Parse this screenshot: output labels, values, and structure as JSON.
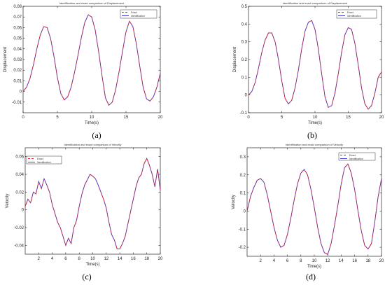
{
  "colors": {
    "exact": "#e32222",
    "identification": "#2d2dd6",
    "frame": "#000000",
    "grid": "#d9d9d9"
  },
  "chart_data": [
    {
      "id": "a",
      "panel_label": "(a)",
      "type": "line",
      "title": "Identification and exact comparison of Displacement",
      "xlabel": "Time(s)",
      "ylabel": "Displacement",
      "xlim": [
        0,
        20
      ],
      "ylim": [
        -0.02,
        0.08
      ],
      "xticks": [
        "0",
        "5",
        "10",
        "15",
        "20"
      ],
      "xtick_values": [
        0,
        5,
        10,
        15,
        20
      ],
      "yticks": [
        "-0.01",
        "0",
        "0.01",
        "0.02",
        "0.03",
        "0.04",
        "0.05",
        "0.06",
        "0.07",
        "0.08"
      ],
      "ytick_values": [
        -0.01,
        0,
        0.01,
        0.02,
        0.03,
        0.04,
        0.05,
        0.06,
        0.07,
        0.08
      ],
      "grid": false,
      "legend_position": "top-right",
      "series": [
        {
          "name": "Exact",
          "style": "dashed",
          "x": [
            0,
            0.5,
            1,
            1.5,
            2,
            2.5,
            3,
            3.5,
            4,
            4.5,
            5,
            5.5,
            6,
            6.5,
            7,
            7.5,
            8,
            8.5,
            9,
            9.5,
            10,
            10.5,
            11,
            11.5,
            12,
            12.5,
            13,
            13.5,
            14,
            14.5,
            15,
            15.5,
            16,
            16.5,
            17,
            17.5,
            18,
            18.5,
            19,
            19.5,
            20
          ],
          "y": [
            0,
            0.004,
            0.012,
            0.025,
            0.04,
            0.053,
            0.061,
            0.06,
            0.05,
            0.033,
            0.013,
            -0.002,
            -0.008,
            -0.005,
            0.004,
            0.018,
            0.034,
            0.051,
            0.065,
            0.072,
            0.07,
            0.058,
            0.038,
            0.015,
            -0.006,
            -0.013,
            -0.01,
            0.002,
            0.019,
            0.038,
            0.056,
            0.066,
            0.061,
            0.045,
            0.024,
            0.004,
            -0.007,
            -0.009,
            -0.005,
            0.004,
            0.017
          ]
        },
        {
          "name": "Identification",
          "style": "solid",
          "x": [
            0,
            0.5,
            1,
            1.5,
            2,
            2.5,
            3,
            3.5,
            4,
            4.5,
            5,
            5.5,
            6,
            6.5,
            7,
            7.5,
            8,
            8.5,
            9,
            9.5,
            10,
            10.5,
            11,
            11.5,
            12,
            12.5,
            13,
            13.5,
            14,
            14.5,
            15,
            15.5,
            16,
            16.5,
            17,
            17.5,
            18,
            18.5,
            19,
            19.5,
            20
          ],
          "y": [
            0,
            0.004,
            0.012,
            0.025,
            0.04,
            0.053,
            0.061,
            0.06,
            0.05,
            0.033,
            0.013,
            -0.002,
            -0.008,
            -0.005,
            0.004,
            0.018,
            0.034,
            0.051,
            0.065,
            0.072,
            0.07,
            0.058,
            0.038,
            0.015,
            -0.006,
            -0.013,
            -0.01,
            0.002,
            0.019,
            0.038,
            0.056,
            0.066,
            0.061,
            0.045,
            0.024,
            0.004,
            -0.007,
            -0.009,
            -0.005,
            0.004,
            0.017
          ]
        }
      ]
    },
    {
      "id": "b",
      "panel_label": "(b)",
      "type": "line",
      "title": "Identification and exact comparison of Displacement",
      "xlabel": "Time(s)",
      "ylabel": "Displacement",
      "xlim": [
        0,
        20
      ],
      "ylim": [
        -0.1,
        0.5
      ],
      "xticks": [
        "0",
        "5",
        "10",
        "15",
        "20"
      ],
      "xtick_values": [
        0,
        5,
        10,
        15,
        20
      ],
      "yticks": [
        "-0.1",
        "0",
        "0.1",
        "0.2",
        "0.3",
        "0.4",
        "0.5"
      ],
      "ytick_values": [
        -0.1,
        0,
        0.1,
        0.2,
        0.3,
        0.4,
        0.5
      ],
      "grid": false,
      "legend_position": "top-right",
      "series": [
        {
          "name": "Exact",
          "style": "dashed",
          "x": [
            0,
            0.5,
            1,
            1.5,
            2,
            2.5,
            3,
            3.5,
            4,
            4.5,
            5,
            5.5,
            6,
            6.5,
            7,
            7.5,
            8,
            8.5,
            9,
            9.5,
            10,
            10.5,
            11,
            11.5,
            12,
            12.5,
            13,
            13.5,
            14,
            14.5,
            15,
            15.5,
            16,
            16.5,
            17,
            17.5,
            18,
            18.5,
            19,
            19.5,
            20
          ],
          "y": [
            0,
            0.02,
            0.07,
            0.15,
            0.24,
            0.31,
            0.35,
            0.35,
            0.3,
            0.2,
            0.08,
            -0.02,
            -0.05,
            -0.03,
            0.04,
            0.14,
            0.26,
            0.36,
            0.41,
            0.42,
            0.37,
            0.26,
            0.12,
            -0.01,
            -0.07,
            -0.06,
            0.01,
            0.12,
            0.24,
            0.34,
            0.38,
            0.37,
            0.29,
            0.17,
            0.04,
            -0.05,
            -0.08,
            -0.06,
            0.01,
            0.1,
            0.13
          ]
        },
        {
          "name": "Identification",
          "style": "solid",
          "x": [
            0,
            0.5,
            1,
            1.5,
            2,
            2.5,
            3,
            3.5,
            4,
            4.5,
            5,
            5.5,
            6,
            6.5,
            7,
            7.5,
            8,
            8.5,
            9,
            9.5,
            10,
            10.5,
            11,
            11.5,
            12,
            12.5,
            13,
            13.5,
            14,
            14.5,
            15,
            15.5,
            16,
            16.5,
            17,
            17.5,
            18,
            18.5,
            19,
            19.5,
            20
          ],
          "y": [
            0,
            0.02,
            0.07,
            0.15,
            0.24,
            0.31,
            0.35,
            0.35,
            0.3,
            0.2,
            0.08,
            -0.02,
            -0.05,
            -0.03,
            0.04,
            0.14,
            0.26,
            0.36,
            0.41,
            0.42,
            0.37,
            0.26,
            0.12,
            -0.01,
            -0.07,
            -0.06,
            0.01,
            0.12,
            0.24,
            0.34,
            0.38,
            0.37,
            0.29,
            0.17,
            0.04,
            -0.05,
            -0.08,
            -0.06,
            0.01,
            0.1,
            0.13
          ]
        }
      ]
    },
    {
      "id": "c",
      "panel_label": "(c)",
      "type": "line",
      "title": "Identification and exact comparison of Velocity",
      "xlabel": "Time(s)",
      "ylabel": "Velocity",
      "xlim": [
        0,
        20
      ],
      "ylim": [
        -0.05,
        0.07
      ],
      "xticks": [
        "2",
        "4",
        "6",
        "8",
        "10",
        "12",
        "14",
        "16",
        "18",
        "20"
      ],
      "xtick_values": [
        2,
        4,
        6,
        8,
        10,
        12,
        14,
        16,
        18,
        20
      ],
      "yticks": [
        "-0.04",
        "-0.02",
        "0",
        "0.02",
        "0.04",
        "0.06"
      ],
      "ytick_values": [
        -0.04,
        -0.02,
        0,
        0.02,
        0.04,
        0.06
      ],
      "grid": false,
      "legend_position": "top-left",
      "series": [
        {
          "name": "Exact",
          "style": "dashed",
          "x": [
            0,
            0.4,
            0.8,
            1.2,
            1.6,
            2,
            2.4,
            2.8,
            3.2,
            3.6,
            4,
            4.4,
            4.8,
            5.2,
            5.6,
            6,
            6.4,
            6.8,
            7.2,
            7.6,
            8,
            8.4,
            8.8,
            9.2,
            9.6,
            10,
            10.4,
            10.8,
            11.2,
            11.6,
            12,
            12.4,
            12.8,
            13.2,
            13.6,
            14,
            14.4,
            14.8,
            15.2,
            15.6,
            16,
            16.4,
            16.8,
            17.2,
            17.6,
            18,
            18.4,
            18.8,
            19.2,
            19.6,
            20
          ],
          "y": [
            0.004,
            0.012,
            0.008,
            0.02,
            0.018,
            0.032,
            0.024,
            0.035,
            0.028,
            0.02,
            0.006,
            -0.004,
            -0.014,
            -0.02,
            -0.03,
            -0.04,
            -0.032,
            -0.038,
            -0.02,
            -0.012,
            0.004,
            0.018,
            0.028,
            0.034,
            0.04,
            0.038,
            0.035,
            0.028,
            0.02,
            0.012,
            0.002,
            -0.014,
            -0.028,
            -0.034,
            -0.044,
            -0.044,
            -0.038,
            -0.03,
            -0.016,
            -0.002,
            0.012,
            0.026,
            0.036,
            0.04,
            0.052,
            0.058,
            0.05,
            0.04,
            0.026,
            0.046,
            0.022
          ]
        },
        {
          "name": "Identification",
          "style": "solid",
          "x": [
            0,
            0.4,
            0.8,
            1.2,
            1.6,
            2,
            2.4,
            2.8,
            3.2,
            3.6,
            4,
            4.4,
            4.8,
            5.2,
            5.6,
            6,
            6.4,
            6.8,
            7.2,
            7.6,
            8,
            8.4,
            8.8,
            9.2,
            9.6,
            10,
            10.4,
            10.8,
            11.2,
            11.6,
            12,
            12.4,
            12.8,
            13.2,
            13.6,
            14,
            14.4,
            14.8,
            15.2,
            15.6,
            16,
            16.4,
            16.8,
            17.2,
            17.6,
            18,
            18.4,
            18.8,
            19.2,
            19.6,
            20
          ],
          "y": [
            0.004,
            0.012,
            0.008,
            0.02,
            0.018,
            0.032,
            0.024,
            0.035,
            0.028,
            0.02,
            0.006,
            -0.004,
            -0.014,
            -0.02,
            -0.03,
            -0.04,
            -0.032,
            -0.038,
            -0.02,
            -0.012,
            0.004,
            0.018,
            0.028,
            0.034,
            0.04,
            0.038,
            0.035,
            0.028,
            0.02,
            0.012,
            0.002,
            -0.014,
            -0.028,
            -0.034,
            -0.044,
            -0.044,
            -0.038,
            -0.03,
            -0.016,
            -0.002,
            0.012,
            0.026,
            0.036,
            0.04,
            0.052,
            0.058,
            0.05,
            0.04,
            0.026,
            0.046,
            0.022
          ]
        }
      ]
    },
    {
      "id": "d",
      "panel_label": "(d)",
      "type": "line",
      "title": "Identification and exact comparison of Velocity",
      "xlabel": "Time(s)",
      "ylabel": "Velocity",
      "xlim": [
        0,
        20
      ],
      "ylim": [
        -0.25,
        0.35
      ],
      "xticks": [
        "2",
        "4",
        "6",
        "8",
        "10",
        "12",
        "14",
        "16",
        "18",
        "20"
      ],
      "xtick_values": [
        2,
        4,
        6,
        8,
        10,
        12,
        14,
        16,
        18,
        20
      ],
      "yticks": [
        "-0.2",
        "-0.1",
        "0",
        "0.1",
        "0.2",
        "0.3"
      ],
      "ytick_values": [
        -0.2,
        -0.1,
        0,
        0.1,
        0.2,
        0.3
      ],
      "grid": false,
      "legend_position": "top-left",
      "series": [
        {
          "name": "Exact",
          "style": "dashed",
          "x": [
            0,
            0.5,
            1,
            1.5,
            2,
            2.5,
            3,
            3.5,
            4,
            4.5,
            5,
            5.5,
            6,
            6.5,
            7,
            7.5,
            8,
            8.5,
            9,
            9.5,
            10,
            10.5,
            11,
            11.5,
            12,
            12.5,
            13,
            13.5,
            14,
            14.5,
            15,
            15.5,
            16,
            16.5,
            17,
            17.5,
            18,
            18.5,
            19,
            19.5,
            20
          ],
          "y": [
            0,
            0.08,
            0.13,
            0.17,
            0.18,
            0.16,
            0.09,
            0,
            -0.09,
            -0.16,
            -0.2,
            -0.19,
            -0.13,
            -0.04,
            0.06,
            0.15,
            0.21,
            0.23,
            0.2,
            0.12,
            0.02,
            -0.09,
            -0.18,
            -0.23,
            -0.24,
            -0.18,
            -0.08,
            0.03,
            0.15,
            0.24,
            0.26,
            0.21,
            0.12,
            0,
            -0.11,
            -0.19,
            -0.21,
            -0.18,
            -0.06,
            0.08,
            0.18
          ]
        },
        {
          "name": "Identification",
          "style": "solid",
          "x": [
            0,
            0.5,
            1,
            1.5,
            2,
            2.5,
            3,
            3.5,
            4,
            4.5,
            5,
            5.5,
            6,
            6.5,
            7,
            7.5,
            8,
            8.5,
            9,
            9.5,
            10,
            10.5,
            11,
            11.5,
            12,
            12.5,
            13,
            13.5,
            14,
            14.5,
            15,
            15.5,
            16,
            16.5,
            17,
            17.5,
            18,
            18.5,
            19,
            19.5,
            20
          ],
          "y": [
            0,
            0.08,
            0.13,
            0.17,
            0.18,
            0.16,
            0.09,
            0,
            -0.09,
            -0.16,
            -0.2,
            -0.19,
            -0.13,
            -0.04,
            0.06,
            0.15,
            0.21,
            0.23,
            0.2,
            0.12,
            0.02,
            -0.09,
            -0.18,
            -0.23,
            -0.24,
            -0.18,
            -0.08,
            0.03,
            0.15,
            0.24,
            0.26,
            0.21,
            0.12,
            0,
            -0.11,
            -0.19,
            -0.21,
            -0.18,
            -0.06,
            0.08,
            0.18
          ]
        }
      ]
    }
  ]
}
